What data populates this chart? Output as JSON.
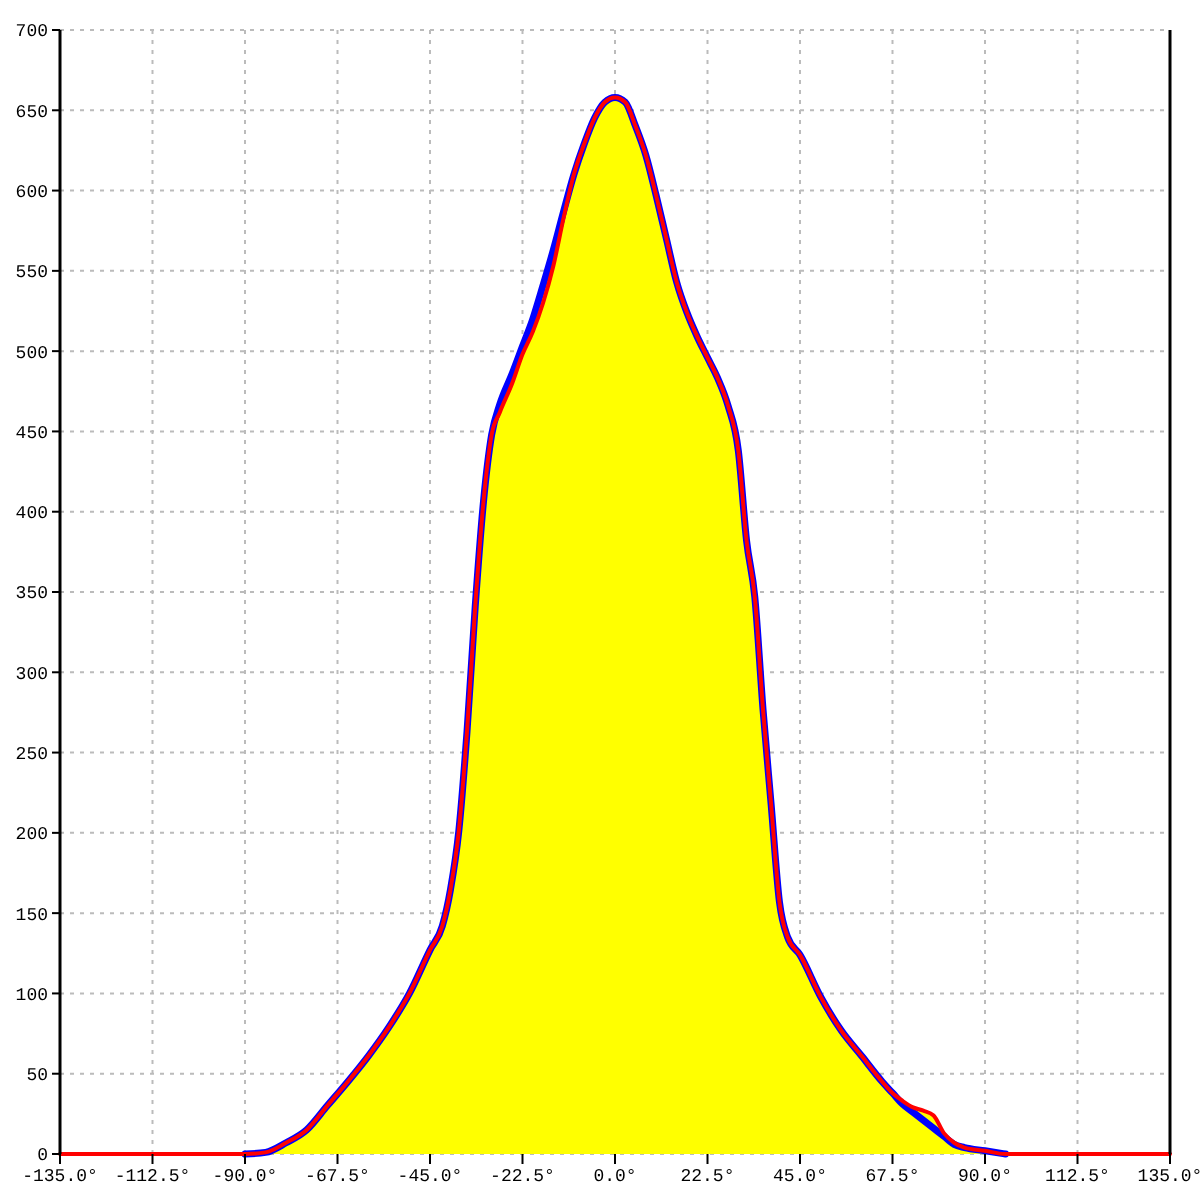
{
  "chart_data": {
    "type": "line",
    "x": [
      -135,
      -90,
      -85,
      -80,
      -75,
      -70,
      -65,
      -60,
      -55,
      -50,
      -45,
      -42,
      -40,
      -38,
      -36,
      -34,
      -32,
      -30,
      -28,
      -25,
      -22.5,
      -20,
      -17.5,
      -15,
      -12.5,
      -10,
      -7.5,
      -5,
      -2.5,
      0,
      2.5,
      5,
      7.5,
      10,
      12.5,
      15,
      17.5,
      20,
      22.5,
      25,
      27.5,
      30,
      32,
      34,
      36,
      38,
      40,
      42,
      45,
      50,
      55,
      60,
      65,
      67.5,
      70,
      72.5,
      75,
      77.5,
      80,
      82.5,
      85,
      90,
      95,
      135
    ],
    "series": [
      {
        "type": "area",
        "color": "#ff0000",
        "values": [
          0,
          0,
          1,
          7,
          15,
          30,
          45,
          61,
          79,
          100,
          127,
          142,
          165,
          201,
          263,
          341,
          406,
          448,
          462,
          480,
          498,
          512,
          530,
          553,
          583,
          610,
          629,
          645,
          655,
          658,
          655,
          640,
          622,
          597,
          570,
          543,
          524,
          509,
          496,
          483,
          466,
          438,
          382,
          347,
          277,
          217,
          157,
          135,
          124,
          98,
          77,
          61,
          45,
          38,
          33,
          29,
          27,
          24,
          13,
          7,
          4,
          2,
          0,
          0
        ]
      },
      {
        "color": "#0000ff",
        "values": [
          null,
          0,
          1,
          7,
          15,
          30,
          45,
          61,
          79,
          100,
          127,
          142,
          165,
          201,
          263,
          341,
          406,
          448,
          467,
          486,
          503,
          520,
          541,
          563,
          587,
          610,
          629,
          645,
          655,
          658,
          655,
          640,
          622,
          597,
          570,
          543,
          524,
          509,
          496,
          483,
          466,
          438,
          382,
          347,
          277,
          217,
          157,
          135,
          124,
          98,
          77,
          61,
          45,
          38,
          31,
          26,
          21,
          16,
          11,
          6,
          4,
          2,
          0,
          null
        ]
      }
    ],
    "xlim": [
      -135,
      135
    ],
    "xticks": [
      {
        "value": -135,
        "label": "-135.0°"
      },
      {
        "value": -112.5,
        "label": "-112.5°"
      },
      {
        "value": -90,
        "label": "-90.0°"
      },
      {
        "value": -67.5,
        "label": "-67.5°"
      },
      {
        "value": -45,
        "label": "-45.0°"
      },
      {
        "value": -22.5,
        "label": "-22.5°"
      },
      {
        "value": 0,
        "label": "0.0°"
      },
      {
        "value": 22.5,
        "label": "22.5°"
      },
      {
        "value": 45,
        "label": "45.0°"
      },
      {
        "value": 67.5,
        "label": "67.5°"
      },
      {
        "value": 90,
        "label": "90.0°"
      },
      {
        "value": 112.5,
        "label": "112.5°"
      },
      {
        "value": 135,
        "label": "135.0°"
      }
    ],
    "ylim": [
      0,
      700
    ],
    "yticks": [
      0,
      50,
      100,
      150,
      200,
      250,
      300,
      350,
      400,
      450,
      500,
      550,
      600,
      650,
      700
    ],
    "grid": true
  }
}
